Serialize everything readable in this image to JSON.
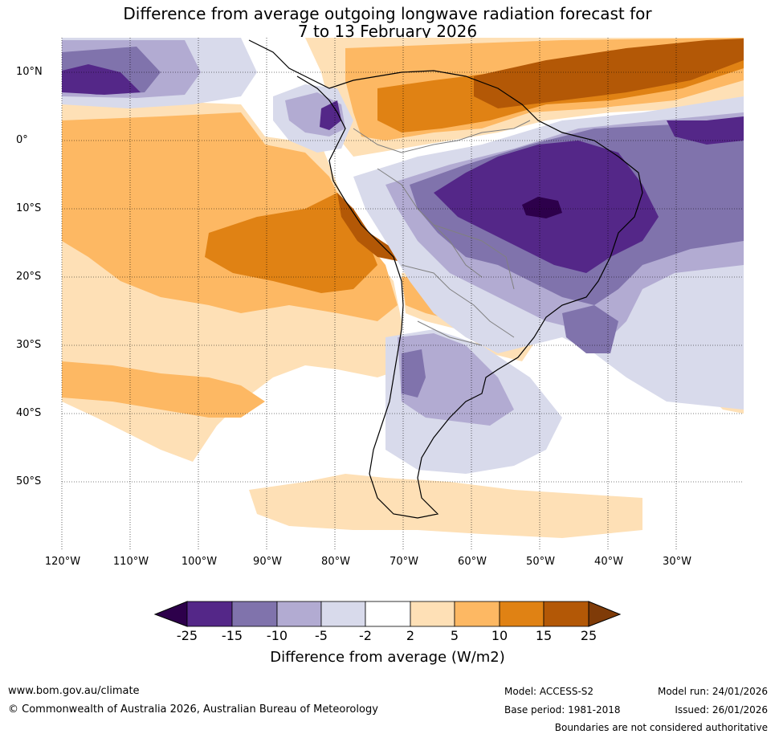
{
  "title": {
    "line1": "Difference from average outgoing longwave radiation forecast for",
    "line2": "7 to 13 February 2026"
  },
  "axes": {
    "lat_labels": [
      "10°N",
      "0°",
      "10°S",
      "20°S",
      "30°S",
      "40°S",
      "50°S"
    ],
    "lat_values": [
      10,
      0,
      -10,
      -20,
      -30,
      -40,
      -50
    ],
    "lon_labels": [
      "120°W",
      "110°W",
      "100°W",
      "90°W",
      "80°W",
      "70°W",
      "60°W",
      "50°W",
      "40°W",
      "30°W"
    ],
    "lon_values": [
      -120,
      -110,
      -100,
      -90,
      -80,
      -70,
      -60,
      -50,
      -40,
      -30
    ],
    "lat_range": [
      -60,
      15
    ],
    "lon_range": [
      -120,
      -20
    ]
  },
  "colorbar": {
    "ticks": [
      "-25",
      "-15",
      "-10",
      "-5",
      "-2",
      "2",
      "5",
      "10",
      "15",
      "25"
    ],
    "colors": [
      "#2d004b",
      "#542788",
      "#8073ac",
      "#b2abd2",
      "#d8daeb",
      "#ffffff",
      "#fee0b6",
      "#fdb863",
      "#e08214",
      "#b35806",
      "#7f3b08"
    ],
    "label": "Difference from average (W/m2)"
  },
  "footer": {
    "website": "www.bom.gov.au/climate",
    "copyright": "© Commonwealth of Australia 2026, Australian Bureau of Meteorology",
    "model": "Model: ACCESS-S2",
    "base_period": "Base period: 1981-2018",
    "model_run": "Model run: 24/01/2026",
    "issued": "Issued: 26/01/2026",
    "disclaimer": "Boundaries are not considered authoritative"
  }
}
